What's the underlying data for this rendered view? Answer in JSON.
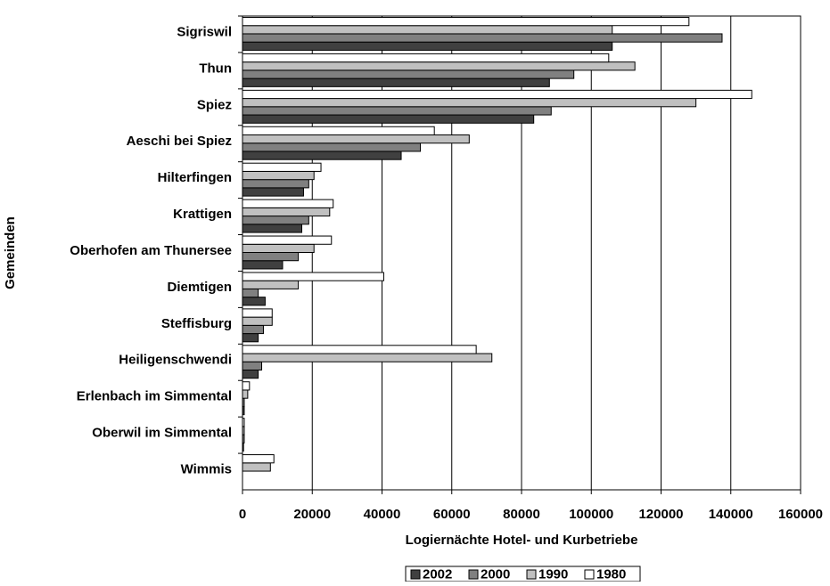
{
  "chart_data": {
    "type": "hbar",
    "x_label": "Logiernächte Hotel- und Kurbetriebe",
    "y_label": "Gemeinden",
    "categories": [
      "Sigriswil",
      "Thun",
      "Spiez",
      "Aeschi bei Spiez",
      "Hilterfingen",
      "Krattigen",
      "Oberhofen am Thunersee",
      "Diemtigen",
      "Steffisburg",
      "Heiligenschwendi",
      "Erlenbach im Simmental",
      "Oberwil im Simmental",
      "Wimmis"
    ],
    "series": [
      {
        "name": "2002",
        "color": "#404040",
        "values": [
          106000,
          88000,
          83500,
          45500,
          17500,
          17000,
          11500,
          6500,
          4500,
          4500,
          500,
          300,
          0
        ]
      },
      {
        "name": "2000",
        "color": "#808080",
        "values": [
          137500,
          95000,
          88500,
          51000,
          19000,
          19000,
          16000,
          4500,
          6000,
          5500,
          500,
          500,
          0
        ]
      },
      {
        "name": "1990",
        "color": "#c0c0c0",
        "values": [
          106000,
          112500,
          130000,
          65000,
          20500,
          25000,
          20500,
          16000,
          8500,
          71500,
          1500,
          500,
          8000
        ]
      },
      {
        "name": "1980",
        "color": "#ffffff",
        "values": [
          128000,
          105000,
          146000,
          55000,
          22500,
          26000,
          25500,
          40500,
          8500,
          67000,
          2000,
          500,
          9000
        ]
      }
    ],
    "xlim": [
      0,
      160000
    ],
    "xticks": [
      0,
      20000,
      40000,
      60000,
      80000,
      100000,
      120000,
      140000,
      160000
    ],
    "grid": true,
    "legend": "bottom"
  }
}
